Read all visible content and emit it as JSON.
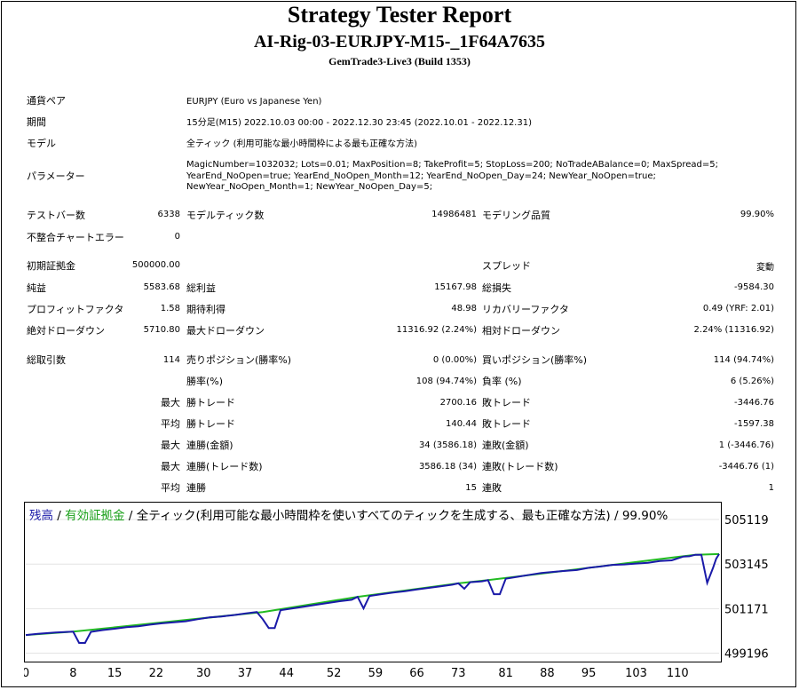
{
  "header": {
    "title": "Strategy Tester Report",
    "subtitle": "AI-Rig-03-EURJPY-M15-_1F64A7635",
    "server": "GemTrade3-Live3 (Build 1353)"
  },
  "info": {
    "pair_label": "通貨ペア",
    "pair_value": "EURJPY (Euro vs Japanese Yen)",
    "period_label": "期間",
    "period_value": "15分足(M15) 2022.10.03 00:00 - 2022.12.30 23:45 (2022.10.01 - 2022.12.31)",
    "model_label": "モデル",
    "model_value": "全ティック (利用可能な最小時間枠による最も正確な方法)",
    "params_label": "パラメーター",
    "params_lines": [
      "MagicNumber=1032032; Lots=0.01; MaxPosition=8; TakeProfit=5; StopLoss=200; NoTradeABalance=0; MaxSpread=5;",
      "YearEnd_NoOpen=true; YearEnd_NoOpen_Month=12; YearEnd_NoOpen_Day=24; NewYear_NoOpen=true;",
      "NewYear_NoOpen_Month=1; NewYear_NoOpen_Day=5;"
    ]
  },
  "stats": {
    "bars_label": "テストバー数",
    "bars_value": "6338",
    "ticks_label": "モデルティック数",
    "ticks_value": "14986481",
    "quality_label": "モデリング品質",
    "quality_value": "99.90%",
    "errors_label": "不整合チャートエラー",
    "errors_value": "0",
    "deposit_label": "初期証拠金",
    "deposit_value": "500000.00",
    "spread_label": "スプレッド",
    "spread_value": "変動",
    "net_label": "純益",
    "net_value": "5583.68",
    "gross_profit_label": "総利益",
    "gross_profit_value": "15167.98",
    "gross_loss_label": "総損失",
    "gross_loss_value": "-9584.30",
    "pf_label": "プロフィットファクタ",
    "pf_value": "1.58",
    "expected_label": "期待利得",
    "expected_value": "48.98",
    "recovery_label": "リカバリーファクタ",
    "recovery_value": "0.49 (YRF: 2.01)",
    "abs_dd_label": "絶対ドローダウン",
    "abs_dd_value": "5710.80",
    "max_dd_label": "最大ドローダウン",
    "max_dd_value": "11316.92 (2.24%)",
    "rel_dd_label": "相対ドローダウン",
    "rel_dd_value": "2.24% (11316.92)",
    "trades_label": "総取引数",
    "trades_value": "114",
    "short_label": "売りポジション(勝率%)",
    "short_value": "0 (0.00%)",
    "long_label": "買いポジション(勝率%)",
    "long_value": "114 (94.74%)",
    "winrate_label": "勝率(%)",
    "winrate_value": "108 (94.74%)",
    "lossrate_label": "負率 (%)",
    "lossrate_value": "6 (5.26%)",
    "max_prefix": "最大",
    "avg_prefix": "平均",
    "max_win_label": "勝トレード",
    "max_win_value": "2700.16",
    "max_loss_label": "敗トレード",
    "max_loss_value": "-3446.76",
    "avg_win_label": "勝トレード",
    "avg_win_value": "140.44",
    "avg_loss_label": "敗トレード",
    "avg_loss_value": "-1597.38",
    "cons_win_amt_label": "連勝(金額)",
    "cons_win_amt_value": "34 (3586.18)",
    "cons_loss_amt_label": "連敗(金額)",
    "cons_loss_amt_value": "1 (-3446.76)",
    "cons_win_cnt_label": "連勝(トレード数)",
    "cons_win_cnt_value": "3586.18 (34)",
    "cons_loss_cnt_label": "連敗(トレード数)",
    "cons_loss_cnt_value": "-3446.76 (1)",
    "avg_cons_win_label": "連勝",
    "avg_cons_win_value": "15",
    "avg_cons_loss_label": "連敗",
    "avg_cons_loss_value": "1"
  },
  "chart_legend": {
    "balance": "残高",
    "sep1": " / ",
    "equity": "有効証拠金",
    "rest": " / 全ティック(利用可能な最小時間枠を使いすべてのティックを生成する、最も正確な方法) / 99.90%"
  },
  "chart_data": {
    "type": "line",
    "x_ticks": [
      "0",
      "8",
      "15",
      "22",
      "30",
      "37",
      "44",
      "52",
      "59",
      "66",
      "73",
      "81",
      "88",
      "95",
      "103",
      "110"
    ],
    "y_ticks": [
      "505119",
      "503145",
      "501171",
      "499196"
    ],
    "xlim": [
      0,
      117
    ],
    "ylim": [
      498900,
      505830
    ],
    "colors": {
      "balance": "#1a1aa8",
      "equity": "#22bb22"
    },
    "series": [
      {
        "values": [
          [
            0,
            500000
          ],
          [
            2,
            500050
          ],
          [
            5,
            500110
          ],
          [
            8,
            500150
          ],
          [
            9,
            499650
          ],
          [
            10,
            499650
          ],
          [
            11,
            500140
          ],
          [
            13,
            500220
          ],
          [
            15,
            500280
          ],
          [
            17,
            500350
          ],
          [
            19,
            500390
          ],
          [
            21,
            500460
          ],
          [
            23,
            500520
          ],
          [
            25,
            500560
          ],
          [
            27,
            500610
          ],
          [
            29,
            500700
          ],
          [
            31,
            500780
          ],
          [
            33,
            500820
          ],
          [
            35,
            500880
          ],
          [
            37,
            500950
          ],
          [
            39,
            501020
          ],
          [
            40,
            500700
          ],
          [
            41,
            500310
          ],
          [
            42,
            500310
          ],
          [
            43,
            501100
          ],
          [
            45,
            501180
          ],
          [
            47,
            501260
          ],
          [
            49,
            501340
          ],
          [
            51,
            501420
          ],
          [
            53,
            501500
          ],
          [
            55,
            501560
          ],
          [
            56,
            501690
          ],
          [
            57,
            501180
          ],
          [
            58,
            501730
          ],
          [
            60,
            501810
          ],
          [
            62,
            501880
          ],
          [
            64,
            501940
          ],
          [
            66,
            502020
          ],
          [
            68,
            502090
          ],
          [
            70,
            502160
          ],
          [
            72,
            502230
          ],
          [
            73,
            502290
          ],
          [
            74,
            502050
          ],
          [
            75,
            502340
          ],
          [
            77,
            502380
          ],
          [
            78,
            502430
          ],
          [
            79,
            501810
          ],
          [
            80,
            501810
          ],
          [
            81,
            502500
          ],
          [
            83,
            502580
          ],
          [
            85,
            502670
          ],
          [
            87,
            502750
          ],
          [
            89,
            502800
          ],
          [
            91,
            502840
          ],
          [
            93,
            502880
          ],
          [
            95,
            502980
          ],
          [
            97,
            503040
          ],
          [
            99,
            503110
          ],
          [
            101,
            503130
          ],
          [
            103,
            503170
          ],
          [
            105,
            503200
          ],
          [
            107,
            503280
          ],
          [
            109,
            503310
          ],
          [
            111,
            503480
          ],
          [
            112,
            503490
          ],
          [
            113,
            503560
          ],
          [
            114,
            503560
          ],
          [
            115,
            502310
          ],
          [
            116,
            502990
          ],
          [
            116.5,
            503380
          ],
          [
            117,
            503590
          ]
        ]
      },
      {
        "values": [
          [
            0,
            500000
          ],
          [
            8,
            500150
          ],
          [
            40,
            501020
          ],
          [
            56,
            501690
          ],
          [
            73,
            502290
          ],
          [
            78,
            502430
          ],
          [
            113,
            503560
          ],
          [
            117,
            503590
          ]
        ]
      }
    ]
  }
}
